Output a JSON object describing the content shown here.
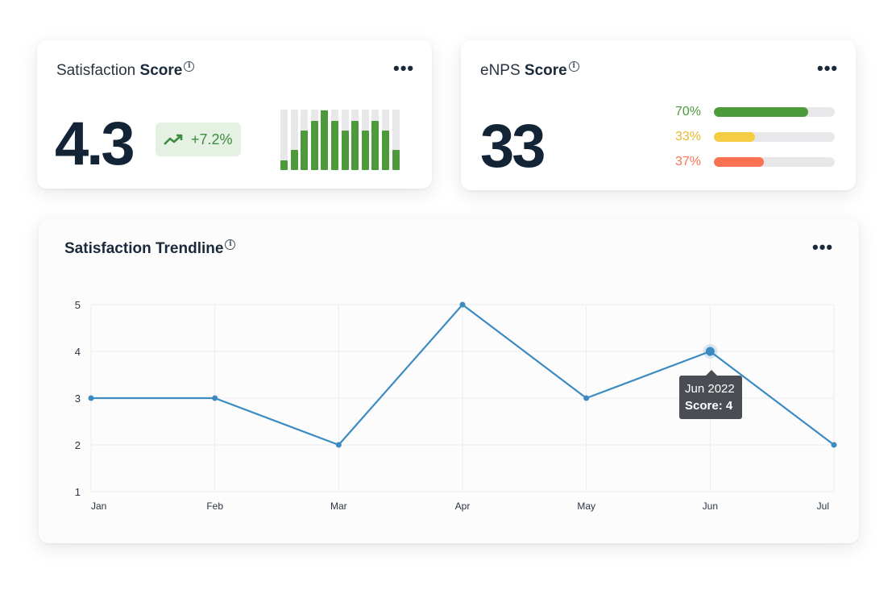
{
  "satisfaction_card": {
    "title_prefix": "Satisfaction",
    "title_bold": "Score",
    "value": "4.3",
    "change": "+7.2%",
    "bars": [
      0.16,
      0.33,
      0.66,
      0.82,
      0.99,
      0.82,
      0.66,
      0.82,
      0.66,
      0.82,
      0.66,
      0.33
    ]
  },
  "enps_card": {
    "title_prefix": "eNPS",
    "title_bold": "Score",
    "value": "33",
    "rows": [
      {
        "label": "70%",
        "fraction": 0.78,
        "color": "#4c9a3c"
      },
      {
        "label": "33%",
        "fraction": 0.34,
        "color": "#f5cd45"
      },
      {
        "label": "37%",
        "fraction": 0.41,
        "color": "#fa7251"
      }
    ]
  },
  "trend_card": {
    "title": "Satisfaction Trendline",
    "tooltip": {
      "line1": "Jun 2022",
      "line2": "Score: 4"
    }
  },
  "chart_data": {
    "type": "line",
    "categories": [
      "Jan",
      "Feb",
      "Mar",
      "Apr",
      "May",
      "Jun",
      "Jul"
    ],
    "series": [
      {
        "values": [
          3,
          3,
          2,
          5,
          3,
          4,
          2
        ]
      }
    ],
    "y_ticks": [
      "1",
      "2",
      "3",
      "4",
      "5"
    ],
    "ylim": [
      1,
      5
    ],
    "line_color": "#3b8bc0",
    "grid": true
  },
  "icons": {
    "info": "info-icon",
    "more": "more-options-icon",
    "trend": "trend-up-icon"
  }
}
